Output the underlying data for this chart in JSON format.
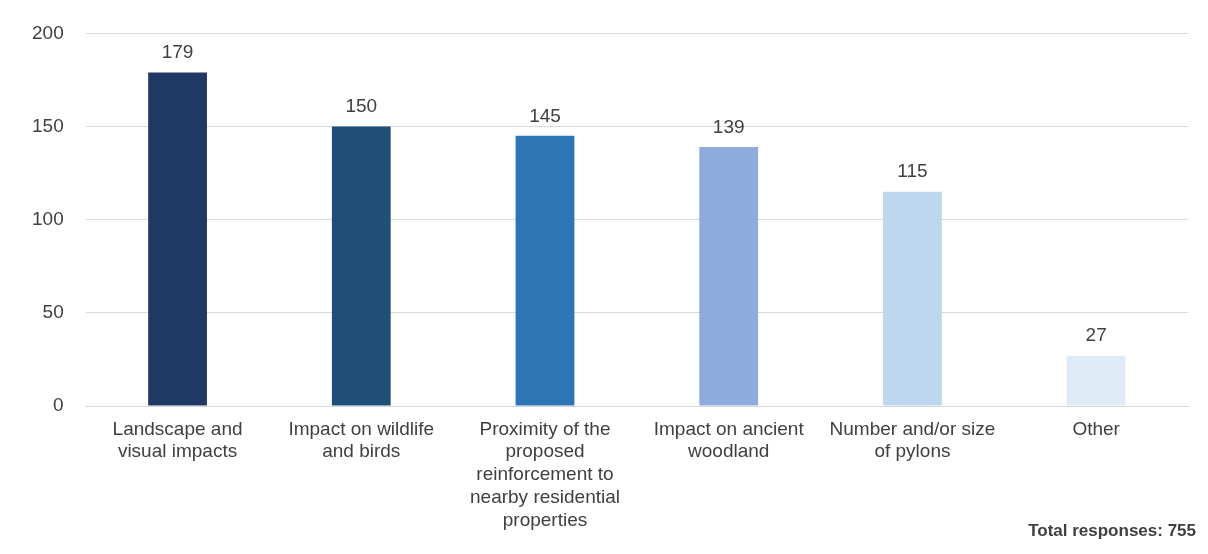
{
  "chart_data": {
    "type": "bar",
    "categories": [
      "Landscape and visual impacts",
      "Impact on wildlife and birds",
      "Proximity of the proposed reinforcement to nearby residential properties",
      "Impact on ancient woodland",
      "Number and/or size of pylons",
      "Other"
    ],
    "values": [
      179,
      150,
      145,
      139,
      115,
      27
    ],
    "colors": [
      "#1f3864",
      "#1f4e79",
      "#2e75b6",
      "#8faadc",
      "#bdd7ee",
      "#deebf7"
    ],
    "ylim": [
      0,
      200
    ],
    "yticks": [
      0,
      50,
      100,
      150,
      200
    ],
    "grid": "y",
    "data_labels": true,
    "legend": false,
    "annotations": [
      "Total responses: 755"
    ]
  }
}
